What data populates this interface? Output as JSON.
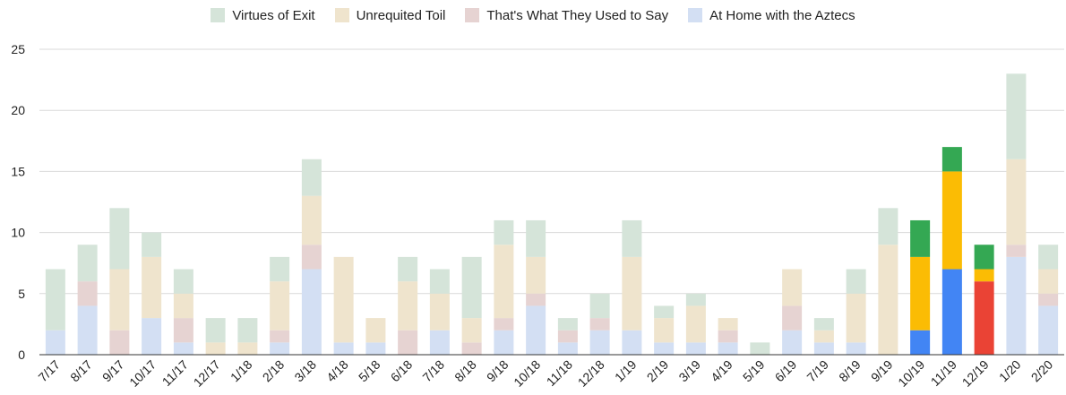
{
  "chart_data": {
    "type": "bar",
    "stacked": true,
    "title": "",
    "xlabel": "",
    "ylabel": "",
    "ylim": [
      0,
      25
    ],
    "yticks": [
      0,
      5,
      10,
      15,
      20,
      25
    ],
    "grid": true,
    "legend_position": "top",
    "categories": [
      "7/17",
      "8/17",
      "9/17",
      "10/17",
      "11/17",
      "12/17",
      "1/18",
      "2/18",
      "3/18",
      "4/18",
      "5/18",
      "6/18",
      "7/18",
      "8/18",
      "9/18",
      "10/18",
      "11/18",
      "12/18",
      "1/19",
      "2/19",
      "3/19",
      "4/19",
      "5/19",
      "6/19",
      "7/19",
      "8/19",
      "9/19",
      "10/19",
      "11/19",
      "12/19",
      "1/20",
      "2/20"
    ],
    "highlighted_categories": [
      "10/19",
      "11/19",
      "12/19"
    ],
    "series": [
      {
        "name": "At Home with the Aztecs",
        "color": "#d3dff3",
        "highlight_color": "#4285f4",
        "values": [
          2,
          4,
          0,
          3,
          1,
          0,
          0,
          1,
          7,
          1,
          1,
          0,
          2,
          0,
          2,
          4,
          1,
          2,
          2,
          1,
          1,
          1,
          0,
          2,
          1,
          1,
          0,
          2,
          7,
          0,
          8,
          4
        ]
      },
      {
        "name": "That's What They Used to Say",
        "color": "#e6d3d2",
        "highlight_color": "#ea4335",
        "values": [
          0,
          2,
          2,
          0,
          2,
          0,
          0,
          1,
          2,
          0,
          0,
          2,
          0,
          1,
          1,
          1,
          1,
          1,
          0,
          0,
          0,
          1,
          0,
          2,
          0,
          0,
          0,
          0,
          0,
          6,
          1,
          1
        ]
      },
      {
        "name": "Unrequited Toil",
        "color": "#efe4cd",
        "highlight_color": "#fbbc04",
        "values": [
          0,
          0,
          5,
          5,
          2,
          1,
          1,
          4,
          4,
          7,
          2,
          4,
          3,
          2,
          6,
          3,
          0,
          0,
          6,
          2,
          3,
          1,
          0,
          3,
          1,
          4,
          9,
          6,
          8,
          1,
          7,
          2
        ]
      },
      {
        "name": "Virtues of Exit",
        "color": "#d5e4d9",
        "highlight_color": "#34a853",
        "values": [
          5,
          3,
          5,
          2,
          2,
          2,
          2,
          2,
          3,
          0,
          0,
          2,
          2,
          5,
          2,
          3,
          1,
          2,
          3,
          1,
          1,
          0,
          1,
          0,
          1,
          2,
          3,
          3,
          2,
          2,
          7,
          2
        ]
      }
    ]
  }
}
